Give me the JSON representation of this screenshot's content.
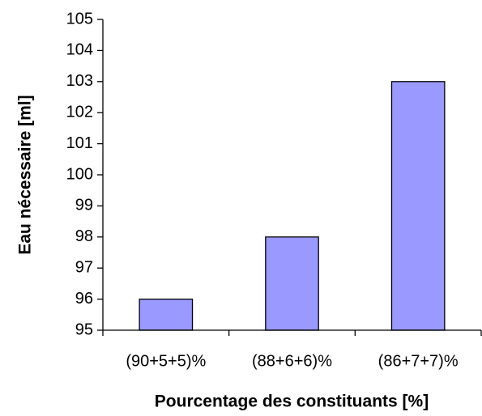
{
  "chart_data": {
    "type": "bar",
    "x_label": "Pourcentage des constituants [%]",
    "y_label": "Eau nécessaire [ml]",
    "categories": [
      "(90+5+5)%",
      "(88+6+6)%",
      "(86+7+7)%"
    ],
    "values": [
      96,
      98,
      103
    ],
    "color": "#9999ff",
    "ylim": [
      95,
      105
    ],
    "yticks": [
      95,
      96,
      97,
      98,
      99,
      100,
      101,
      102,
      103,
      104,
      105
    ],
    "grid": false
  }
}
